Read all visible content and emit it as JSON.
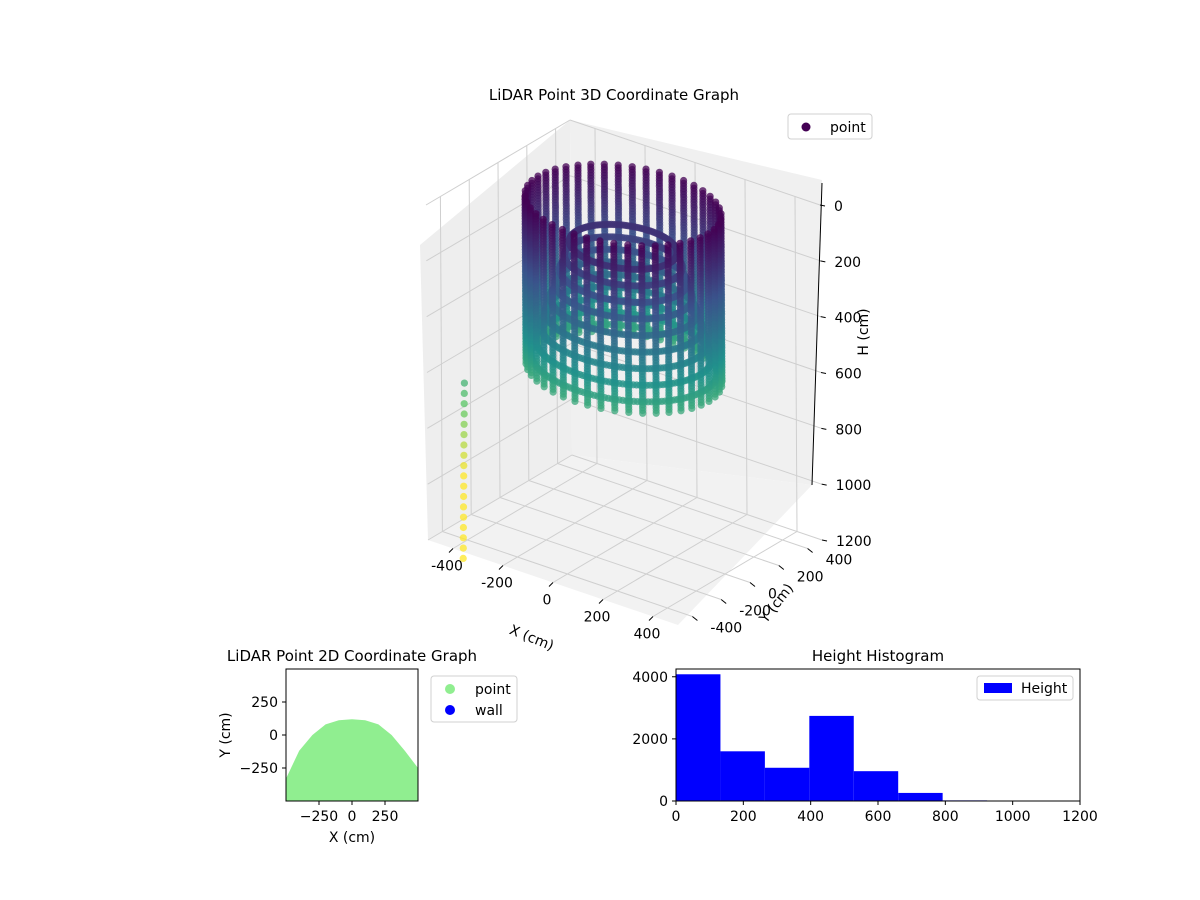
{
  "chart_data": [
    {
      "type": "scatter3d",
      "title": "LiDAR Point 3D Coordinate Graph",
      "xlabel": "X (cm)",
      "ylabel": "Y (cm)",
      "zlabel": "H (cm)",
      "xticks": [
        "-400",
        "-200",
        "0",
        "200",
        "400"
      ],
      "yticks": [
        "-400",
        "-200",
        "0",
        "200",
        "400"
      ],
      "zticks": [
        "0",
        "200",
        "400",
        "600",
        "800",
        "1000",
        "1200"
      ],
      "xlim": [
        -500,
        500
      ],
      "ylim": [
        -500,
        500
      ],
      "zlim": [
        0,
        1200
      ],
      "z_inverted": true,
      "legend": [
        {
          "name": "point",
          "color": "#440154"
        }
      ],
      "legend_position": "top-right",
      "colormap": "viridis",
      "structure": {
        "shape": "cylindrical wall of scan rings",
        "radius": 340,
        "height_top": 0,
        "height_bottom": 600,
        "scan_columns": 44,
        "rings": 9,
        "stray_points_lower_left": true
      }
    },
    {
      "type": "scatter",
      "title": "LiDAR Point 2D Coordinate Graph",
      "xlabel": "X (cm)",
      "ylabel": "Y (cm)",
      "xticks": [
        "−250",
        "0",
        "250"
      ],
      "yticks": [
        "250",
        "0",
        "−250"
      ],
      "xlim": [
        -500,
        500
      ],
      "ylim": [
        -500,
        500
      ],
      "legend": [
        {
          "name": "point",
          "color": "#90ee90"
        },
        {
          "name": "wall",
          "color": "#0000ff"
        }
      ],
      "legend_position": "outside-right",
      "series": [
        {
          "name": "point",
          "color": "#90ee90",
          "shape": "filled dome",
          "outline": [
            [
              -500,
              -500
            ],
            [
              -500,
              -330
            ],
            [
              -400,
              -120
            ],
            [
              -300,
              0
            ],
            [
              -200,
              80
            ],
            [
              -100,
              112
            ],
            [
              0,
              120
            ],
            [
              100,
              112
            ],
            [
              200,
              80
            ],
            [
              300,
              0
            ],
            [
              400,
              -120
            ],
            [
              500,
              -250
            ],
            [
              500,
              -500
            ]
          ]
        },
        {
          "name": "wall",
          "color": "#0000ff",
          "points": []
        }
      ]
    },
    {
      "type": "bar",
      "title": "Height Histogram",
      "xticks": [
        "0",
        "200",
        "400",
        "600",
        "800",
        "1000",
        "1200"
      ],
      "yticks": [
        "0",
        "2000",
        "4000"
      ],
      "xlim": [
        0,
        1200
      ],
      "ylim": [
        0,
        4250
      ],
      "legend": [
        {
          "name": "Height",
          "color": "#0000ff"
        }
      ],
      "legend_position": "top-right",
      "bin_edges": [
        0,
        132,
        264,
        396,
        528,
        660,
        792,
        924,
        1056,
        1188
      ],
      "values": [
        4080,
        1600,
        1070,
        2740,
        960,
        260,
        20,
        5,
        3
      ],
      "color": "#0000ff"
    }
  ]
}
